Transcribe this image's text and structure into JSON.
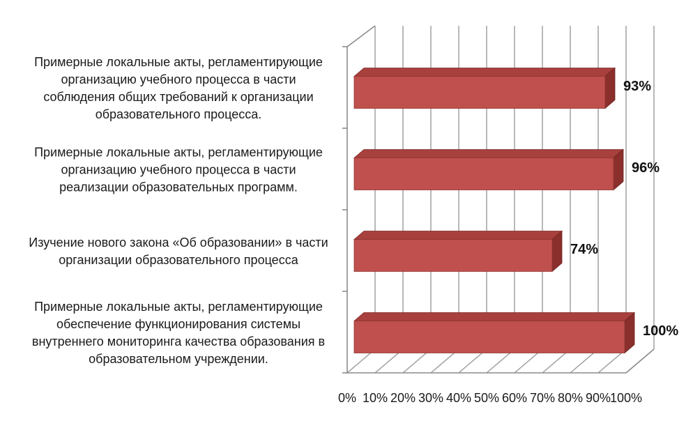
{
  "chart_data": {
    "type": "bar",
    "orientation": "horizontal",
    "style": "3d",
    "categories": [
      "Примерные локальные акты, регламентирующие организацию учебного процесса в части соблюдения общих требований к организации образовательного процесса.",
      "Примерные локальные акты, регламентирующие организацию учебного процесса в части реализации образовательных программ.",
      "Изучение нового закона «Об образовании» в части организации образовательного процесса",
      "Примерные локальные акты, регламентирующие обеспечение функционирования системы внутреннего мониторинга качества образования в образовательном учреждении."
    ],
    "category_lines": [
      [
        "Примерные локальные акты, регламентирующие",
        "организацию учебного процесса в части",
        "соблюдения общих требований к организации",
        "образовательного процесса."
      ],
      [
        "Примерные локальные акты, регламентирующие",
        "организацию учебного процесса в части",
        "реализации образовательных программ."
      ],
      [
        "Изучение нового закона «Об образовании» в части",
        "организации образовательного процесса"
      ],
      [
        "Примерные локальные акты, регламентирующие",
        "обеспечение функционирования системы",
        "внутреннего мониторинга качества образования в",
        "образовательном учреждении."
      ]
    ],
    "values": [
      93,
      96,
      74,
      100
    ],
    "data_labels": [
      "93%",
      "96%",
      "74%",
      "100%"
    ],
    "x_ticks": [
      "0%",
      "10%",
      "20%",
      "30%",
      "40%",
      "50%",
      "60%",
      "70%",
      "80%",
      "90%",
      "100%"
    ],
    "xlim": [
      0,
      100
    ],
    "grid": true,
    "legend": "none",
    "bar_color": "#c0504d",
    "bar_top_color": "#a8403d",
    "bar_side_color": "#8a2f2c",
    "title": "",
    "xlabel": "",
    "ylabel": ""
  }
}
